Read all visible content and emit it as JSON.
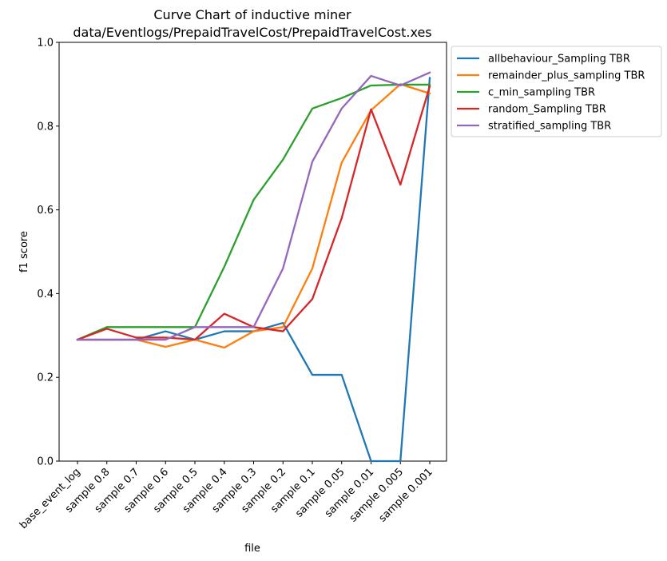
{
  "chart_data": {
    "type": "line",
    "title_lines": [
      "Curve Chart of inductive miner",
      "data/Eventlogs/PrepaidTravelCost/PrepaidTravelCost.xes"
    ],
    "xlabel": "file",
    "ylabel": "f1 score",
    "ylim": [
      0,
      1.0
    ],
    "yticks": [
      "0.0",
      "0.2",
      "0.4",
      "0.6",
      "0.8",
      "1.0"
    ],
    "grid": false,
    "legend_position": "outside-top-right",
    "categories": [
      "base_event_log",
      "sample 0.8",
      "sample 0.7",
      "sample 0.6",
      "sample 0.5",
      "sample 0.4",
      "sample 0.3",
      "sample 0.2",
      "sample 0.1",
      "sample 0.05",
      "sample 0.01",
      "sample 0.005",
      "sample 0.001"
    ],
    "series": [
      {
        "name": "allbehaviour_Sampling TBR",
        "color": "#1f77b4",
        "values": [
          0.29,
          0.29,
          0.29,
          0.31,
          0.29,
          0.31,
          0.31,
          0.33,
          0.206,
          0.206,
          0.0,
          0.0,
          0.915
        ]
      },
      {
        "name": "remainder_plus_sampling TBR",
        "color": "#ff7f0e",
        "values": [
          0.29,
          0.29,
          0.29,
          0.273,
          0.29,
          0.271,
          0.31,
          0.32,
          0.46,
          0.713,
          0.838,
          0.9,
          0.878
        ]
      },
      {
        "name": "c_min_sampling TBR",
        "color": "#2ca02c",
        "values": [
          0.29,
          0.32,
          0.32,
          0.32,
          0.32,
          0.464,
          0.624,
          0.72,
          0.842,
          0.867,
          0.897,
          0.899,
          0.899
        ]
      },
      {
        "name": "random_Sampling TBR",
        "color": "#d62728",
        "values": [
          0.29,
          0.316,
          0.295,
          0.295,
          0.29,
          0.352,
          0.32,
          0.31,
          0.387,
          0.58,
          0.84,
          0.66,
          0.895
        ]
      },
      {
        "name": "stratified_sampling TBR",
        "color": "#9467bd",
        "values": [
          0.29,
          0.29,
          0.29,
          0.29,
          0.32,
          0.32,
          0.32,
          0.46,
          0.715,
          0.842,
          0.92,
          0.897,
          0.928
        ]
      }
    ]
  }
}
